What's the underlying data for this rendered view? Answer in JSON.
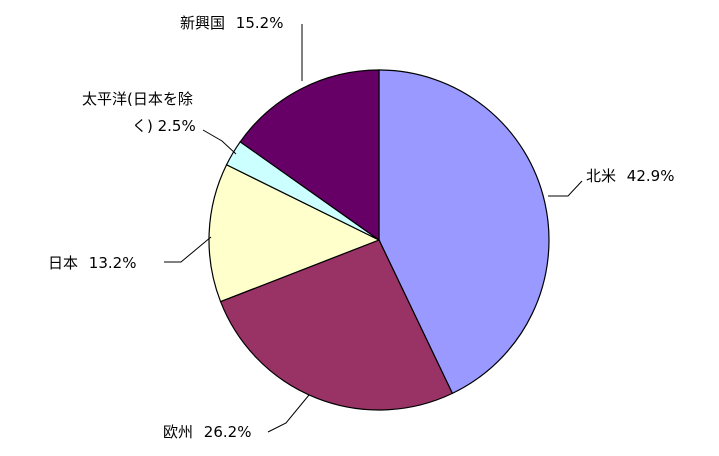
{
  "chart_data": {
    "type": "pie",
    "start_angle_deg": 0,
    "direction": "clockwise",
    "slices": [
      {
        "label": "北米",
        "value": 42.9,
        "value_text": "42.9%",
        "color": "#9999FF"
      },
      {
        "label": "欧州",
        "value": 26.2,
        "value_text": "26.2%",
        "color": "#993366"
      },
      {
        "label": "日本",
        "value": 13.2,
        "value_text": "13.2%",
        "color": "#FFFFCC"
      },
      {
        "label": "太平洋(日本を除く)",
        "label_lines": [
          "太平洋(日本を除",
          "く) 2.5%"
        ],
        "value": 2.5,
        "value_text": "2.5%",
        "color": "#CCFFFF"
      },
      {
        "label": "新興国",
        "value": 15.2,
        "value_text": "15.2%",
        "color": "#660066"
      }
    ]
  }
}
